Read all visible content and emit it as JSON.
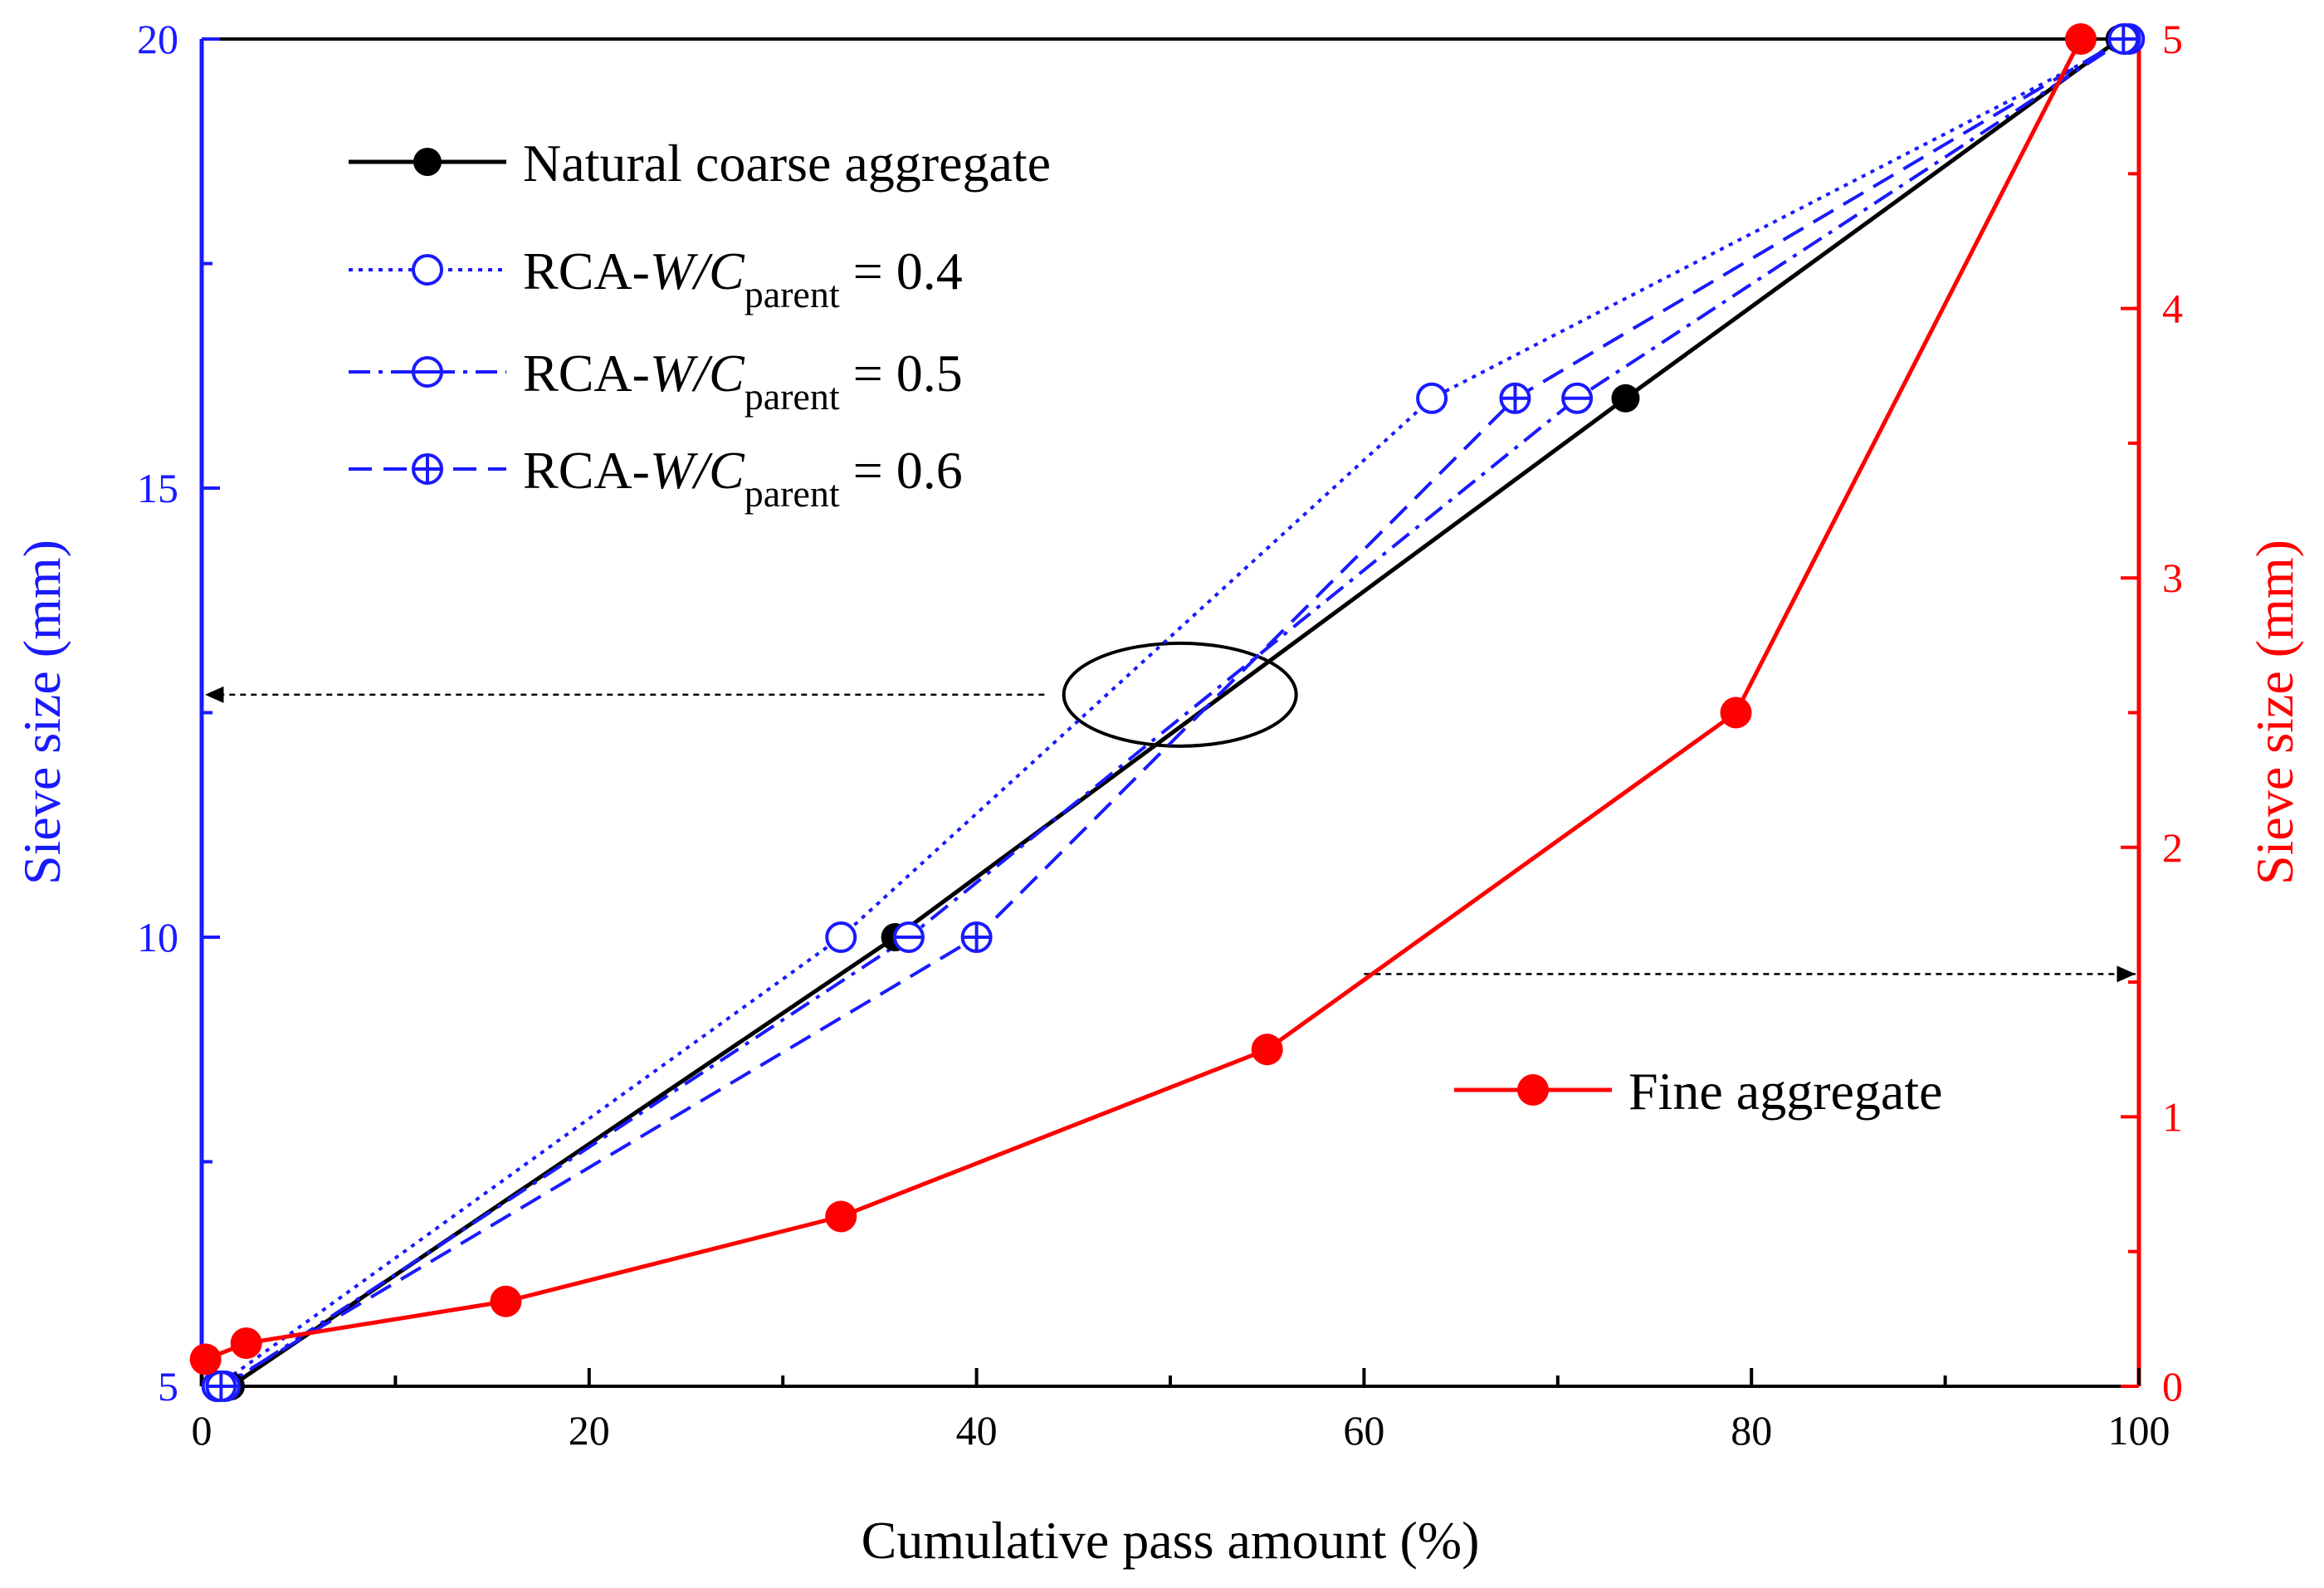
{
  "chart_data": {
    "type": "line",
    "title": "",
    "xlabel": "Cumulative pass amount (%)",
    "ylabel": "Sieve size (mm)",
    "y2label": "Sieve size (mm)",
    "xlim": [
      0,
      100
    ],
    "ylim": [
      5,
      20
    ],
    "y2lim": [
      0,
      5
    ],
    "xticks": [
      0,
      20,
      40,
      60,
      80,
      100
    ],
    "yticks": [
      5,
      10,
      15,
      20
    ],
    "y2ticks": [
      0,
      1,
      2,
      3,
      4,
      5
    ],
    "grid": false,
    "colors": {
      "left_axis": "#1a1aff",
      "right_axis": "#ff0000",
      "natural": "#000000",
      "rca": "#1a1aff",
      "fine": "#ff0000",
      "frame": "#000000"
    },
    "series": [
      {
        "name": "Natural coarse aggregate",
        "axis": "left",
        "style": "solid",
        "marker": "filled-circle",
        "x": [
          1.5,
          35.8,
          73.5,
          99.0
        ],
        "y": [
          5,
          10,
          16,
          20
        ]
      },
      {
        "name": "RCA-W/C parent = 0.4",
        "axis": "left",
        "style": "dotted",
        "marker": "open-circle",
        "x": [
          0.8,
          33.0,
          63.5,
          99.5
        ],
        "y": [
          5,
          10,
          16,
          20
        ]
      },
      {
        "name": "RCA-W/C parent = 0.5",
        "axis": "left",
        "style": "dash-dot",
        "marker": "circle-minus",
        "x": [
          1.2,
          36.5,
          71.0,
          99.3
        ],
        "y": [
          5,
          10,
          16,
          20
        ]
      },
      {
        "name": "RCA-W/C parent = 0.6",
        "axis": "left",
        "style": "dashed",
        "marker": "circle-plus",
        "x": [
          1.0,
          40.0,
          67.8,
          99.2
        ],
        "y": [
          5,
          10,
          16,
          20
        ]
      },
      {
        "name": "Fine aggregate",
        "axis": "right",
        "style": "solid",
        "marker": "filled-circle",
        "x": [
          0.2,
          2.3,
          15.7,
          33.0,
          55.0,
          79.2,
          97.0
        ],
        "y": [
          0.1,
          0.16,
          0.315,
          0.63,
          1.25,
          2.5,
          5.0
        ]
      }
    ],
    "legend": [
      {
        "label": "Natural coarse aggregate"
      },
      {
        "label": "RCA-",
        "var": "W/C",
        "sub": "parent",
        "value": " = 0.4"
      },
      {
        "label": "RCA-",
        "var": "W/C",
        "sub": "parent",
        "value": " = 0.5"
      },
      {
        "label": "RCA-",
        "var": "W/C",
        "sub": "parent",
        "value": " = 0.6"
      }
    ],
    "legend_fine": {
      "label": "Fine aggregate"
    },
    "annotations": [
      {
        "type": "ellipse",
        "target_axis": "left",
        "center_x": 50.5,
        "center_y": 12.7,
        "note": "ellipse around coarse curves with arrow to left axis"
      },
      {
        "type": "arrow",
        "target_axis": "left",
        "from_x": 43.5,
        "to_x": 0.0,
        "at_y": 12.7
      },
      {
        "type": "arrow",
        "target_axis": "right",
        "from_x": 60.0,
        "to_x": 100.0,
        "at_y2": 1.53
      }
    ]
  }
}
